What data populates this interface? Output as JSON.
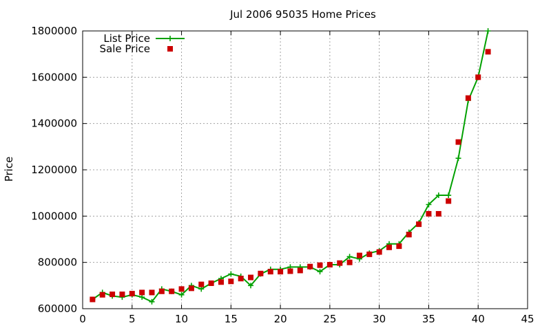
{
  "chart_data": {
    "type": "line",
    "title": "Jul 2006 95035 Home Prices",
    "xlabel": "",
    "ylabel": "Price",
    "xlim": [
      0,
      45
    ],
    "ylim": [
      600000,
      1800000
    ],
    "xticks": [
      0,
      5,
      10,
      15,
      20,
      25,
      30,
      35,
      40,
      45
    ],
    "yticks": [
      600000,
      800000,
      1000000,
      1200000,
      1400000,
      1600000,
      1800000
    ],
    "grid": true,
    "legend_position": "top-left",
    "series": [
      {
        "name": "List Price",
        "style": "line-plus",
        "color": "#00a000",
        "x": [
          1,
          2,
          3,
          4,
          5,
          6,
          7,
          8,
          9,
          10,
          11,
          12,
          13,
          14,
          15,
          16,
          17,
          18,
          19,
          20,
          21,
          22,
          23,
          24,
          25,
          26,
          27,
          28,
          29,
          30,
          31,
          32,
          33,
          34,
          35,
          36,
          37,
          38,
          39,
          40,
          41
        ],
        "y": [
          640000,
          670000,
          655000,
          650000,
          660000,
          650000,
          630000,
          685000,
          675000,
          660000,
          700000,
          685000,
          710000,
          730000,
          750000,
          740000,
          700000,
          750000,
          770000,
          770000,
          780000,
          780000,
          780000,
          760000,
          790000,
          790000,
          825000,
          815000,
          840000,
          850000,
          880000,
          880000,
          930000,
          970000,
          1050000,
          1090000,
          1090000,
          1250000,
          1500000,
          1600000,
          1800000
        ]
      },
      {
        "name": "Sale Price",
        "style": "square-points",
        "color": "#cc0000",
        "x": [
          1,
          2,
          3,
          4,
          5,
          6,
          7,
          8,
          9,
          10,
          11,
          12,
          13,
          14,
          15,
          16,
          17,
          18,
          19,
          20,
          21,
          22,
          23,
          24,
          25,
          26,
          27,
          28,
          29,
          30,
          31,
          32,
          33,
          34,
          35,
          36,
          37,
          38,
          39,
          40,
          41
        ],
        "y": [
          640000,
          660000,
          662000,
          662000,
          665000,
          670000,
          670000,
          675000,
          675000,
          685000,
          688000,
          705000,
          710000,
          715000,
          718000,
          730000,
          735000,
          752000,
          760000,
          760000,
          762000,
          765000,
          782000,
          788000,
          790000,
          797000,
          800000,
          830000,
          835000,
          845000,
          865000,
          870000,
          920000,
          965000,
          1010000,
          1010000,
          1065000,
          1320000,
          1510000,
          1600000,
          1710000
        ]
      }
    ]
  }
}
